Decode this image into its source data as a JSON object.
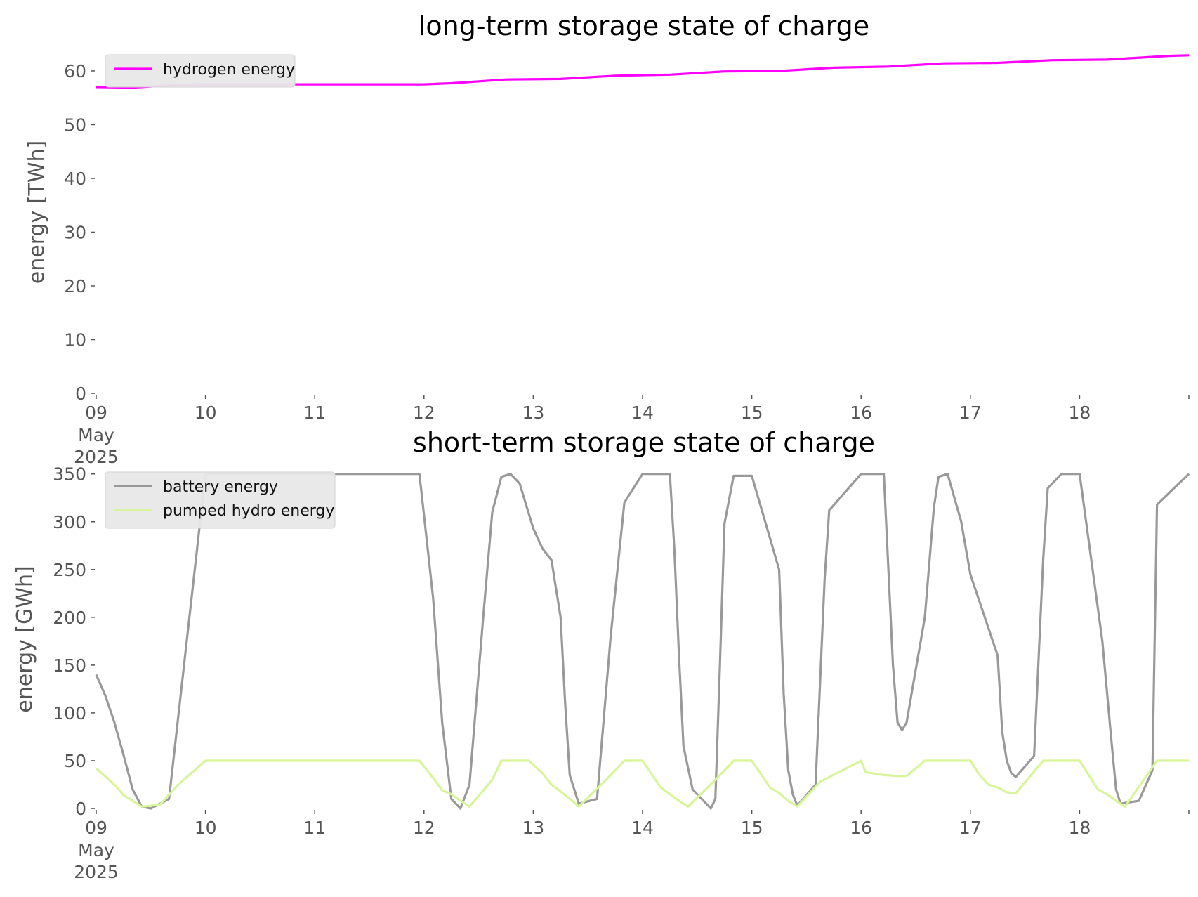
{
  "chart_data": [
    {
      "type": "line",
      "title": "long-term storage state of charge",
      "ylabel": "energy [TWh]",
      "xlabel": "",
      "ylim": [
        0,
        63
      ],
      "yticks": [
        0,
        10,
        20,
        30,
        40,
        50,
        60
      ],
      "xlim": [
        "2025-05-09",
        "2025-05-19"
      ],
      "xtick_labels": [
        "09",
        "10",
        "11",
        "12",
        "13",
        "14",
        "15",
        "16",
        "17",
        "18"
      ],
      "xtick_sublabels": [
        "May",
        "2025"
      ],
      "grid": false,
      "legend_position": "top-left",
      "series": [
        {
          "name": "hydrogen energy",
          "color": "#ff00ff",
          "x": [
            "2025-05-09 00:00",
            "2025-05-09 08:00",
            "2025-05-09 18:00",
            "2025-05-10 00:00",
            "2025-05-10 12:00",
            "2025-05-11 00:00",
            "2025-05-11 12:00",
            "2025-05-12 00:00",
            "2025-05-12 06:00",
            "2025-05-12 18:00",
            "2025-05-13 06:00",
            "2025-05-13 18:00",
            "2025-05-14 06:00",
            "2025-05-14 18:00",
            "2025-05-15 06:00",
            "2025-05-15 18:00",
            "2025-05-16 06:00",
            "2025-05-16 18:00",
            "2025-05-17 06:00",
            "2025-05-17 18:00",
            "2025-05-18 06:00",
            "2025-05-18 20:00",
            "2025-05-19 00:00"
          ],
          "y": [
            57.0,
            56.9,
            57.4,
            57.5,
            57.5,
            57.5,
            57.5,
            57.5,
            57.7,
            58.4,
            58.5,
            59.1,
            59.3,
            59.9,
            60.0,
            60.6,
            60.8,
            61.4,
            61.5,
            62.0,
            62.1,
            62.8,
            62.9
          ]
        }
      ]
    },
    {
      "type": "line",
      "title": "short-term storage state of charge",
      "ylabel": "energy [GWh]",
      "xlabel": "",
      "ylim": [
        0,
        352
      ],
      "yticks": [
        0,
        50,
        100,
        150,
        200,
        250,
        300,
        350
      ],
      "xlim": [
        "2025-05-09",
        "2025-05-19"
      ],
      "xtick_labels": [
        "09",
        "10",
        "11",
        "12",
        "13",
        "14",
        "15",
        "16",
        "17",
        "18"
      ],
      "xtick_sublabels": [
        "May",
        "2025"
      ],
      "grid": false,
      "legend_position": "top-left",
      "series": [
        {
          "name": "battery energy",
          "color": "#999999",
          "x": [
            "2025-05-09 00:00",
            "2025-05-09 02:00",
            "2025-05-09 04:00",
            "2025-05-09 06:00",
            "2025-05-09 08:00",
            "2025-05-09 10:00",
            "2025-05-09 12:00",
            "2025-05-09 16:00",
            "2025-05-10 00:00",
            "2025-05-11 00:00",
            "2025-05-11 23:00",
            "2025-05-12 02:00",
            "2025-05-12 04:00",
            "2025-05-12 06:00",
            "2025-05-12 08:00",
            "2025-05-12 10:00",
            "2025-05-12 13:00",
            "2025-05-12 15:00",
            "2025-05-12 17:00",
            "2025-05-12 19:00",
            "2025-05-12 21:00",
            "2025-05-13 00:00",
            "2025-05-13 02:00",
            "2025-05-13 04:00",
            "2025-05-13 06:00",
            "2025-05-13 07:00",
            "2025-05-13 08:00",
            "2025-05-13 10:00",
            "2025-05-13 14:00",
            "2025-05-13 17:00",
            "2025-05-13 20:00",
            "2025-05-14 00:00",
            "2025-05-14 06:00",
            "2025-05-14 07:00",
            "2025-05-14 08:00",
            "2025-05-14 09:00",
            "2025-05-14 11:00",
            "2025-05-14 15:00",
            "2025-05-14 16:00",
            "2025-05-14 17:00",
            "2025-05-14 18:00",
            "2025-05-14 20:00",
            "2025-05-15 00:00",
            "2025-05-15 06:00",
            "2025-05-15 07:00",
            "2025-05-15 08:00",
            "2025-05-15 09:00",
            "2025-05-15 10:00",
            "2025-05-15 14:00",
            "2025-05-15 16:00",
            "2025-05-15 17:00",
            "2025-05-16 00:00",
            "2025-05-16 05:00",
            "2025-05-16 07:00",
            "2025-05-16 08:00",
            "2025-05-16 09:00",
            "2025-05-16 10:00",
            "2025-05-16 14:00",
            "2025-05-16 16:00",
            "2025-05-16 17:00",
            "2025-05-16 19:00",
            "2025-05-16 22:00",
            "2025-05-17 00:00",
            "2025-05-17 06:00",
            "2025-05-17 07:00",
            "2025-05-17 08:00",
            "2025-05-17 09:00",
            "2025-05-17 10:00",
            "2025-05-17 14:00",
            "2025-05-17 16:00",
            "2025-05-17 17:00",
            "2025-05-17 20:00",
            "2025-05-18 00:00",
            "2025-05-18 05:00",
            "2025-05-18 07:00",
            "2025-05-18 08:00",
            "2025-05-18 09:00",
            "2025-05-18 13:00",
            "2025-05-18 16:00",
            "2025-05-18 17:00",
            "2025-05-19 00:00"
          ],
          "y": [
            140,
            118,
            90,
            56,
            20,
            2,
            0,
            10,
            350,
            350,
            350,
            220,
            90,
            10,
            0,
            25,
            200,
            310,
            347,
            350,
            340,
            293,
            272,
            260,
            200,
            110,
            35,
            5,
            10,
            180,
            320,
            350,
            350,
            270,
            160,
            65,
            20,
            0,
            10,
            150,
            298,
            348,
            348,
            250,
            120,
            40,
            15,
            3,
            25,
            240,
            312,
            350,
            350,
            150,
            90,
            82,
            90,
            200,
            315,
            347,
            350,
            300,
            245,
            160,
            80,
            50,
            37,
            33,
            55,
            260,
            335,
            350,
            350,
            175,
            70,
            20,
            5,
            8,
            40,
            318,
            350
          ],
          "note": ""
        },
        {
          "name": "pumped hydro energy",
          "color": "#d9f59a",
          "x": [
            "2025-05-09 00:00",
            "2025-05-09 04:00",
            "2025-05-09 06:00",
            "2025-05-09 08:00",
            "2025-05-09 10:00",
            "2025-05-09 14:00",
            "2025-05-09 18:00",
            "2025-05-10 00:00",
            "2025-05-11 00:00",
            "2025-05-11 23:00",
            "2025-05-12 02:00",
            "2025-05-12 04:00",
            "2025-05-12 06:00",
            "2025-05-12 08:00",
            "2025-05-12 10:00",
            "2025-05-12 15:00",
            "2025-05-12 17:00",
            "2025-05-12 23:00",
            "2025-05-13 02:00",
            "2025-05-13 04:00",
            "2025-05-13 06:00",
            "2025-05-13 08:00",
            "2025-05-13 10:00",
            "2025-05-13 16:00",
            "2025-05-13 20:00",
            "2025-05-14 00:00",
            "2025-05-14 02:00",
            "2025-05-14 04:00",
            "2025-05-14 06:00",
            "2025-05-14 08:00",
            "2025-05-14 10:00",
            "2025-05-14 16:00",
            "2025-05-14 20:00",
            "2025-05-15 00:00",
            "2025-05-15 02:00",
            "2025-05-15 04:00",
            "2025-05-15 06:00",
            "2025-05-15 08:00",
            "2025-05-15 10:00",
            "2025-05-15 15:00",
            "2025-05-16 00:00",
            "2025-05-16 01:00",
            "2025-05-16 05:00",
            "2025-05-16 08:00",
            "2025-05-16 10:00",
            "2025-05-16 14:00",
            "2025-05-17 00:00",
            "2025-05-17 02:00",
            "2025-05-17 04:00",
            "2025-05-17 06:00",
            "2025-05-17 08:00",
            "2025-05-17 10:00",
            "2025-05-17 16:00",
            "2025-05-18 00:00",
            "2025-05-18 02:00",
            "2025-05-18 04:00",
            "2025-05-18 06:00",
            "2025-05-18 08:00",
            "2025-05-18 10:00",
            "2025-05-18 17:00",
            "2025-05-19 00:00"
          ],
          "y": [
            42,
            25,
            14,
            8,
            2,
            4,
            25,
            50,
            50,
            50,
            32,
            19,
            15,
            8,
            2,
            30,
            50,
            50,
            37,
            25,
            18,
            10,
            2,
            30,
            50,
            50,
            36,
            22,
            15,
            8,
            2,
            30,
            50,
            50,
            36,
            22,
            16,
            8,
            2,
            28,
            50,
            38,
            35,
            34,
            34,
            50,
            50,
            35,
            25,
            22,
            17,
            16,
            50,
            50,
            35,
            20,
            15,
            8,
            2,
            50,
            50
          ]
        }
      ]
    }
  ]
}
